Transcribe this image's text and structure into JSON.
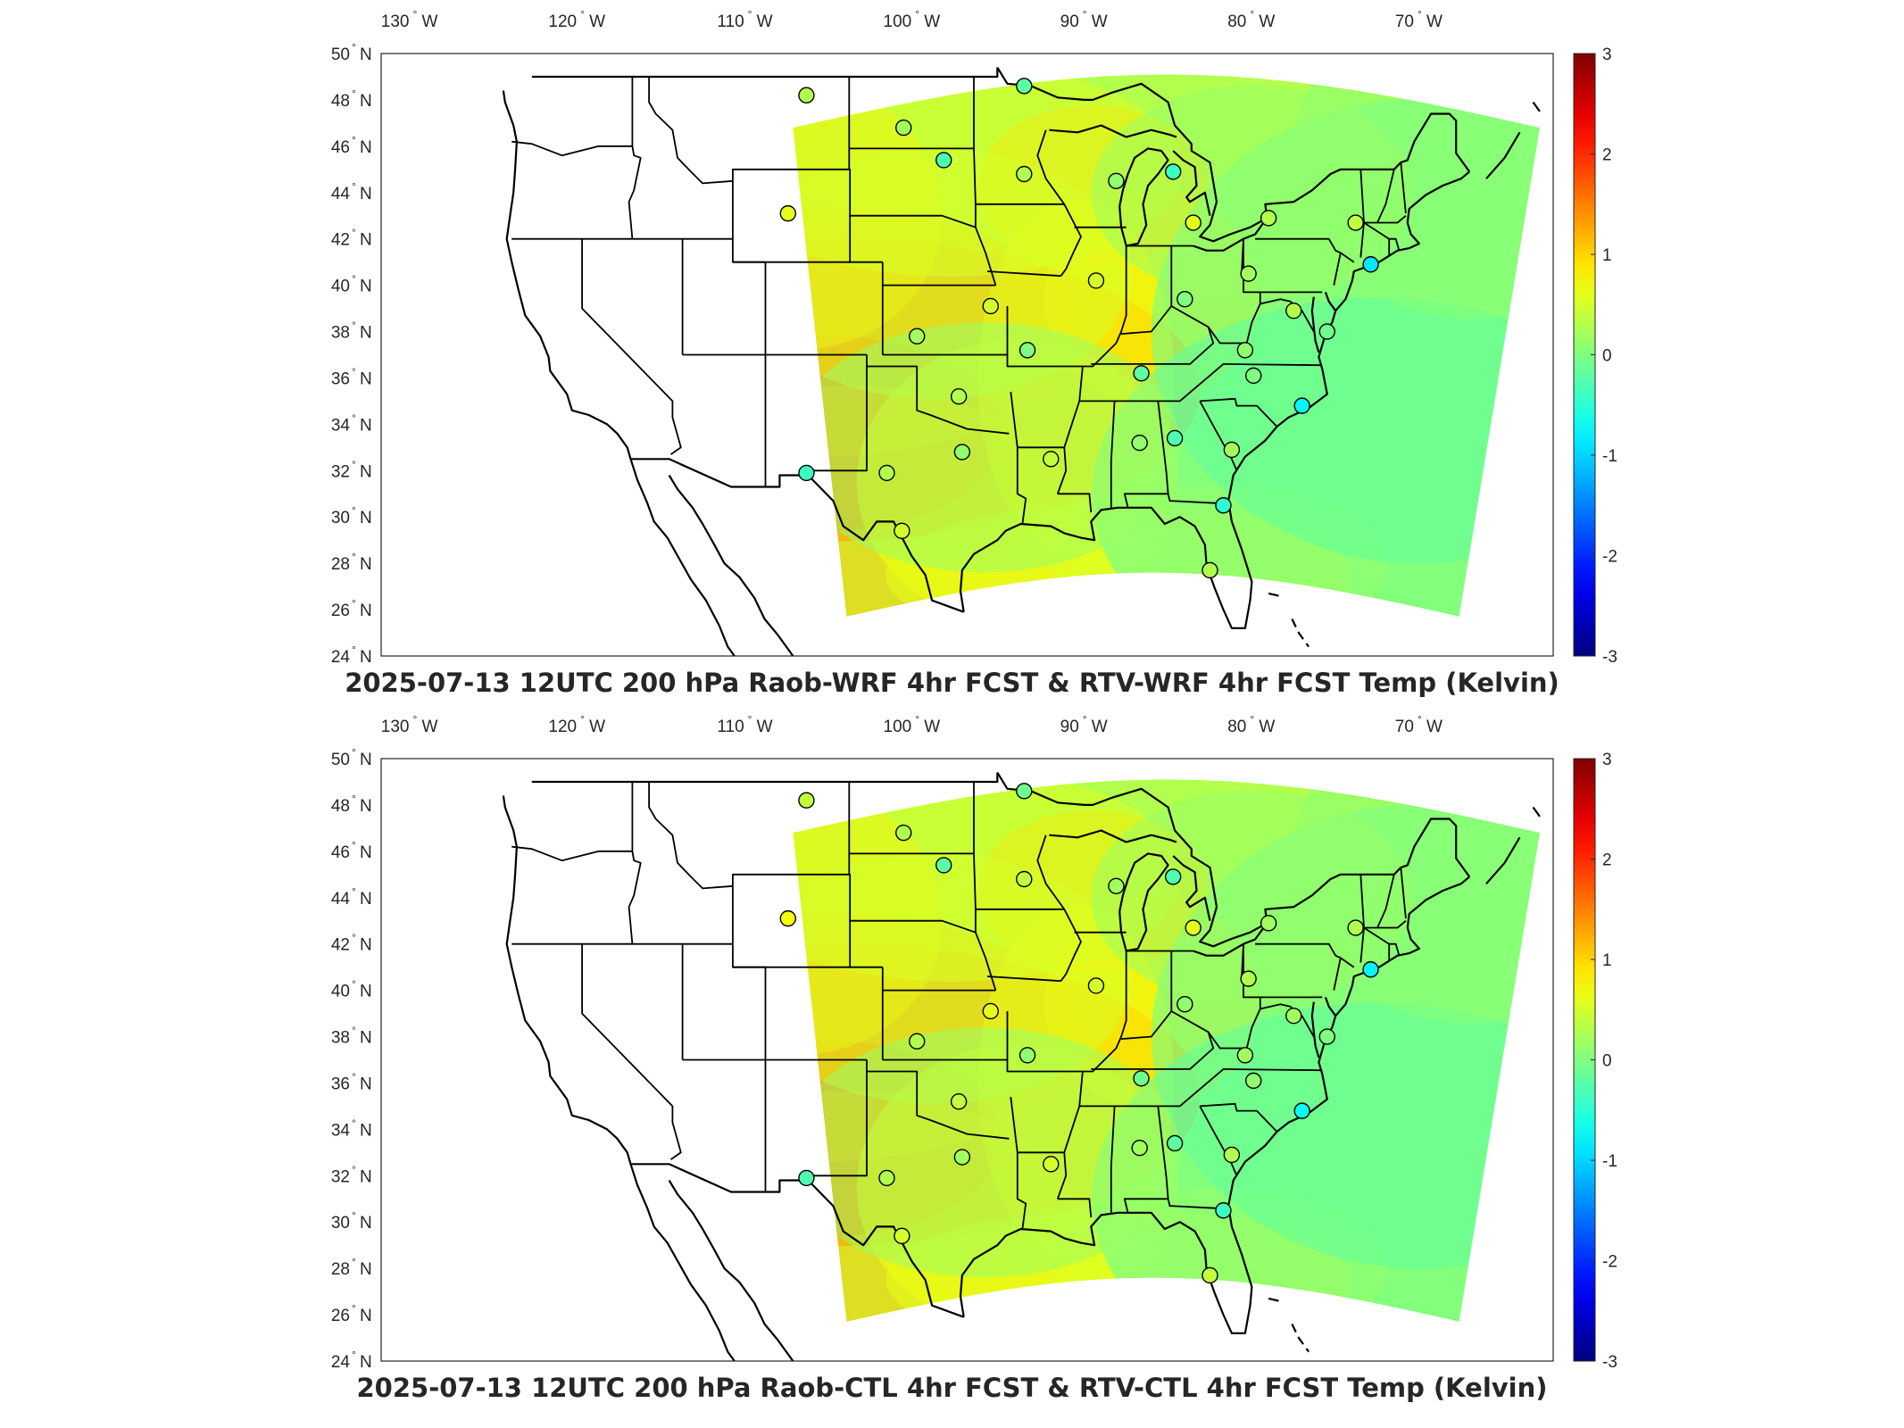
{
  "panels": [
    {
      "title": "2025-07-13 12UTC 200 hPa Raob-WRF 4hr FCST & RTV-WRF 4hr FCST Temp (Kelvin)",
      "lon_labels": [
        "130",
        "120",
        "110",
        "100",
        "90",
        "80",
        "70"
      ],
      "lon_values": [
        -130,
        -120,
        -110,
        -100,
        -90,
        -80,
        -70
      ],
      "lon_hemisphere": "W",
      "lat_labels": [
        "50",
        "48",
        "46",
        "44",
        "42",
        "40",
        "38",
        "36",
        "34",
        "32",
        "30",
        "28",
        "26",
        "24"
      ],
      "lat_values": [
        50,
        48,
        46,
        44,
        42,
        40,
        38,
        36,
        34,
        32,
        30,
        28,
        26,
        24
      ],
      "lat_hemisphere": "N",
      "colorbar_ticks": [
        "3",
        "2",
        "1",
        "0",
        "-1",
        "-2",
        "-3"
      ],
      "colorbar_range": [
        -3,
        3
      ],
      "stations": [
        {
          "lon": -106.6,
          "lat": 48.2,
          "v": 0.3
        },
        {
          "lon": -98.4,
          "lat": 45.4,
          "v": -0.3
        },
        {
          "lon": -100.8,
          "lat": 46.8,
          "v": 0.2
        },
        {
          "lon": -93.6,
          "lat": 48.6,
          "v": -0.2
        },
        {
          "lon": -93.6,
          "lat": 44.8,
          "v": 0.3
        },
        {
          "lon": -88.1,
          "lat": 44.5,
          "v": 0.1
        },
        {
          "lon": -84.7,
          "lat": 44.9,
          "v": -0.4
        },
        {
          "lon": -83.5,
          "lat": 42.7,
          "v": 0.6
        },
        {
          "lon": -79.0,
          "lat": 42.9,
          "v": 0.3
        },
        {
          "lon": -73.8,
          "lat": 42.7,
          "v": 0.4
        },
        {
          "lon": -72.9,
          "lat": 40.9,
          "v": -0.9
        },
        {
          "lon": -107.7,
          "lat": 43.1,
          "v": 0.6
        },
        {
          "lon": -89.3,
          "lat": 40.2,
          "v": 0.5
        },
        {
          "lon": -84.0,
          "lat": 39.4,
          "v": 0.0
        },
        {
          "lon": -80.2,
          "lat": 40.5,
          "v": 0.2
        },
        {
          "lon": -77.5,
          "lat": 38.9,
          "v": 0.3
        },
        {
          "lon": -75.5,
          "lat": 38.0,
          "v": -0.1
        },
        {
          "lon": -95.6,
          "lat": 39.1,
          "v": 0.5
        },
        {
          "lon": -100.0,
          "lat": 37.8,
          "v": 0.2
        },
        {
          "lon": -93.4,
          "lat": 37.2,
          "v": 0.0
        },
        {
          "lon": -86.6,
          "lat": 36.2,
          "v": -0.2
        },
        {
          "lon": -80.4,
          "lat": 37.2,
          "v": 0.1
        },
        {
          "lon": -79.9,
          "lat": 36.1,
          "v": 0.0
        },
        {
          "lon": -77.0,
          "lat": 34.8,
          "v": -0.8
        },
        {
          "lon": -97.5,
          "lat": 35.2,
          "v": 0.3
        },
        {
          "lon": -97.3,
          "lat": 32.8,
          "v": 0.1
        },
        {
          "lon": -101.8,
          "lat": 31.9,
          "v": 0.3
        },
        {
          "lon": -106.6,
          "lat": 31.9,
          "v": -0.4
        },
        {
          "lon": -100.9,
          "lat": 29.4,
          "v": 0.5
        },
        {
          "lon": -92.0,
          "lat": 32.5,
          "v": 0.4
        },
        {
          "lon": -86.7,
          "lat": 33.2,
          "v": 0.1
        },
        {
          "lon": -84.6,
          "lat": 33.4,
          "v": -0.3
        },
        {
          "lon": -81.2,
          "lat": 32.9,
          "v": 0.2
        },
        {
          "lon": -81.7,
          "lat": 30.5,
          "v": -0.5
        },
        {
          "lon": -82.5,
          "lat": 27.7,
          "v": 0.3
        }
      ]
    },
    {
      "title": "2025-07-13 12UTC 200 hPa Raob-CTL 4hr FCST & RTV-CTL 4hr FCST Temp (Kelvin)",
      "lon_labels": [
        "130",
        "120",
        "110",
        "100",
        "90",
        "80",
        "70"
      ],
      "lon_values": [
        -130,
        -120,
        -110,
        -100,
        -90,
        -80,
        -70
      ],
      "lon_hemisphere": "W",
      "lat_labels": [
        "50",
        "48",
        "46",
        "44",
        "42",
        "40",
        "38",
        "36",
        "34",
        "32",
        "30",
        "28",
        "26",
        "24"
      ],
      "lat_values": [
        50,
        48,
        46,
        44,
        42,
        40,
        38,
        36,
        34,
        32,
        30,
        28,
        26,
        24
      ],
      "lat_hemisphere": "N",
      "colorbar_ticks": [
        "3",
        "2",
        "1",
        "0",
        "-1",
        "-2",
        "-3"
      ],
      "colorbar_range": [
        -3,
        3
      ],
      "stations": [
        {
          "lon": -106.6,
          "lat": 48.2,
          "v": 0.4
        },
        {
          "lon": -98.4,
          "lat": 45.4,
          "v": -0.2
        },
        {
          "lon": -100.8,
          "lat": 46.8,
          "v": 0.3
        },
        {
          "lon": -93.6,
          "lat": 48.6,
          "v": -0.1
        },
        {
          "lon": -93.6,
          "lat": 44.8,
          "v": 0.4
        },
        {
          "lon": -88.1,
          "lat": 44.5,
          "v": 0.2
        },
        {
          "lon": -84.7,
          "lat": 44.9,
          "v": -0.3
        },
        {
          "lon": -83.5,
          "lat": 42.7,
          "v": 0.6
        },
        {
          "lon": -79.0,
          "lat": 42.9,
          "v": 0.2
        },
        {
          "lon": -73.8,
          "lat": 42.7,
          "v": 0.3
        },
        {
          "lon": -72.9,
          "lat": 40.9,
          "v": -0.8
        },
        {
          "lon": -107.7,
          "lat": 43.1,
          "v": 0.7
        },
        {
          "lon": -89.3,
          "lat": 40.2,
          "v": 0.5
        },
        {
          "lon": -84.0,
          "lat": 39.4,
          "v": 0.1
        },
        {
          "lon": -80.2,
          "lat": 40.5,
          "v": 0.3
        },
        {
          "lon": -77.5,
          "lat": 38.9,
          "v": 0.2
        },
        {
          "lon": -75.5,
          "lat": 38.0,
          "v": 0.0
        },
        {
          "lon": -95.6,
          "lat": 39.1,
          "v": 0.6
        },
        {
          "lon": -100.0,
          "lat": 37.8,
          "v": 0.3
        },
        {
          "lon": -93.4,
          "lat": 37.2,
          "v": 0.1
        },
        {
          "lon": -86.6,
          "lat": 36.2,
          "v": -0.1
        },
        {
          "lon": -80.4,
          "lat": 37.2,
          "v": 0.2
        },
        {
          "lon": -79.9,
          "lat": 36.1,
          "v": 0.1
        },
        {
          "lon": -77.0,
          "lat": 34.8,
          "v": -0.7
        },
        {
          "lon": -97.5,
          "lat": 35.2,
          "v": 0.4
        },
        {
          "lon": -97.3,
          "lat": 32.8,
          "v": 0.2
        },
        {
          "lon": -101.8,
          "lat": 31.9,
          "v": 0.3
        },
        {
          "lon": -106.6,
          "lat": 31.9,
          "v": -0.3
        },
        {
          "lon": -100.9,
          "lat": 29.4,
          "v": 0.5
        },
        {
          "lon": -92.0,
          "lat": 32.5,
          "v": 0.5
        },
        {
          "lon": -86.7,
          "lat": 33.2,
          "v": 0.2
        },
        {
          "lon": -84.6,
          "lat": 33.4,
          "v": -0.2
        },
        {
          "lon": -81.2,
          "lat": 32.9,
          "v": 0.3
        },
        {
          "lon": -81.7,
          "lat": 30.5,
          "v": -0.4
        },
        {
          "lon": -82.5,
          "lat": 27.7,
          "v": 0.4
        }
      ]
    }
  ]
}
